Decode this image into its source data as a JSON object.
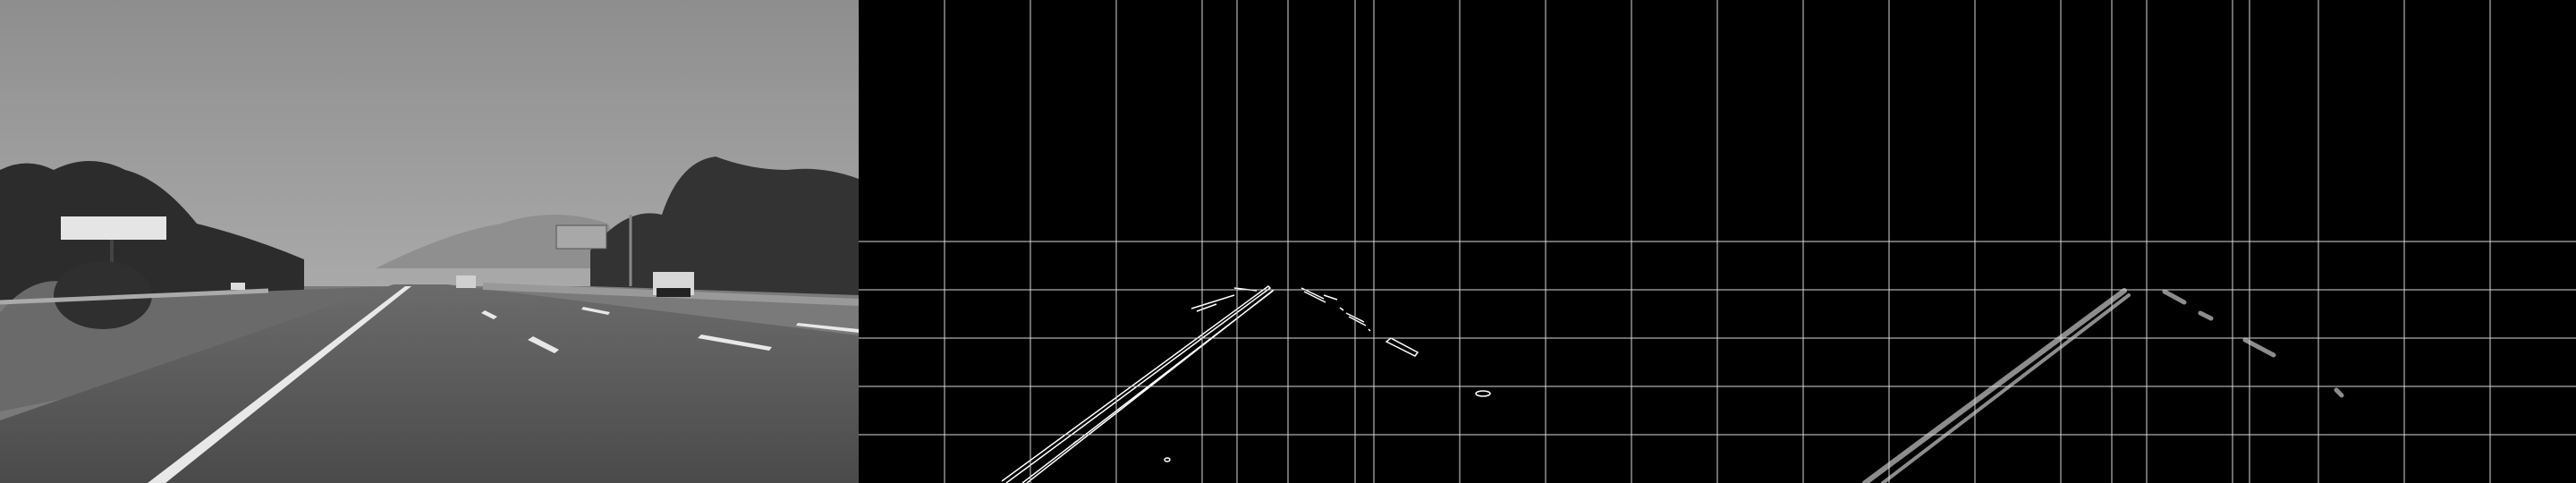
{
  "panels": [
    {
      "id": "original-grayscale",
      "kind": "photo"
    },
    {
      "id": "canny-edges",
      "kind": "edge-map"
    },
    {
      "id": "hough-lines",
      "kind": "line-map"
    }
  ],
  "colors": {
    "sky": "#a3a3a3",
    "road": "#555555",
    "edge": "#ffffff",
    "hough": "#8c8c8c",
    "grid": "#d9d9d9",
    "background": "#000000"
  }
}
